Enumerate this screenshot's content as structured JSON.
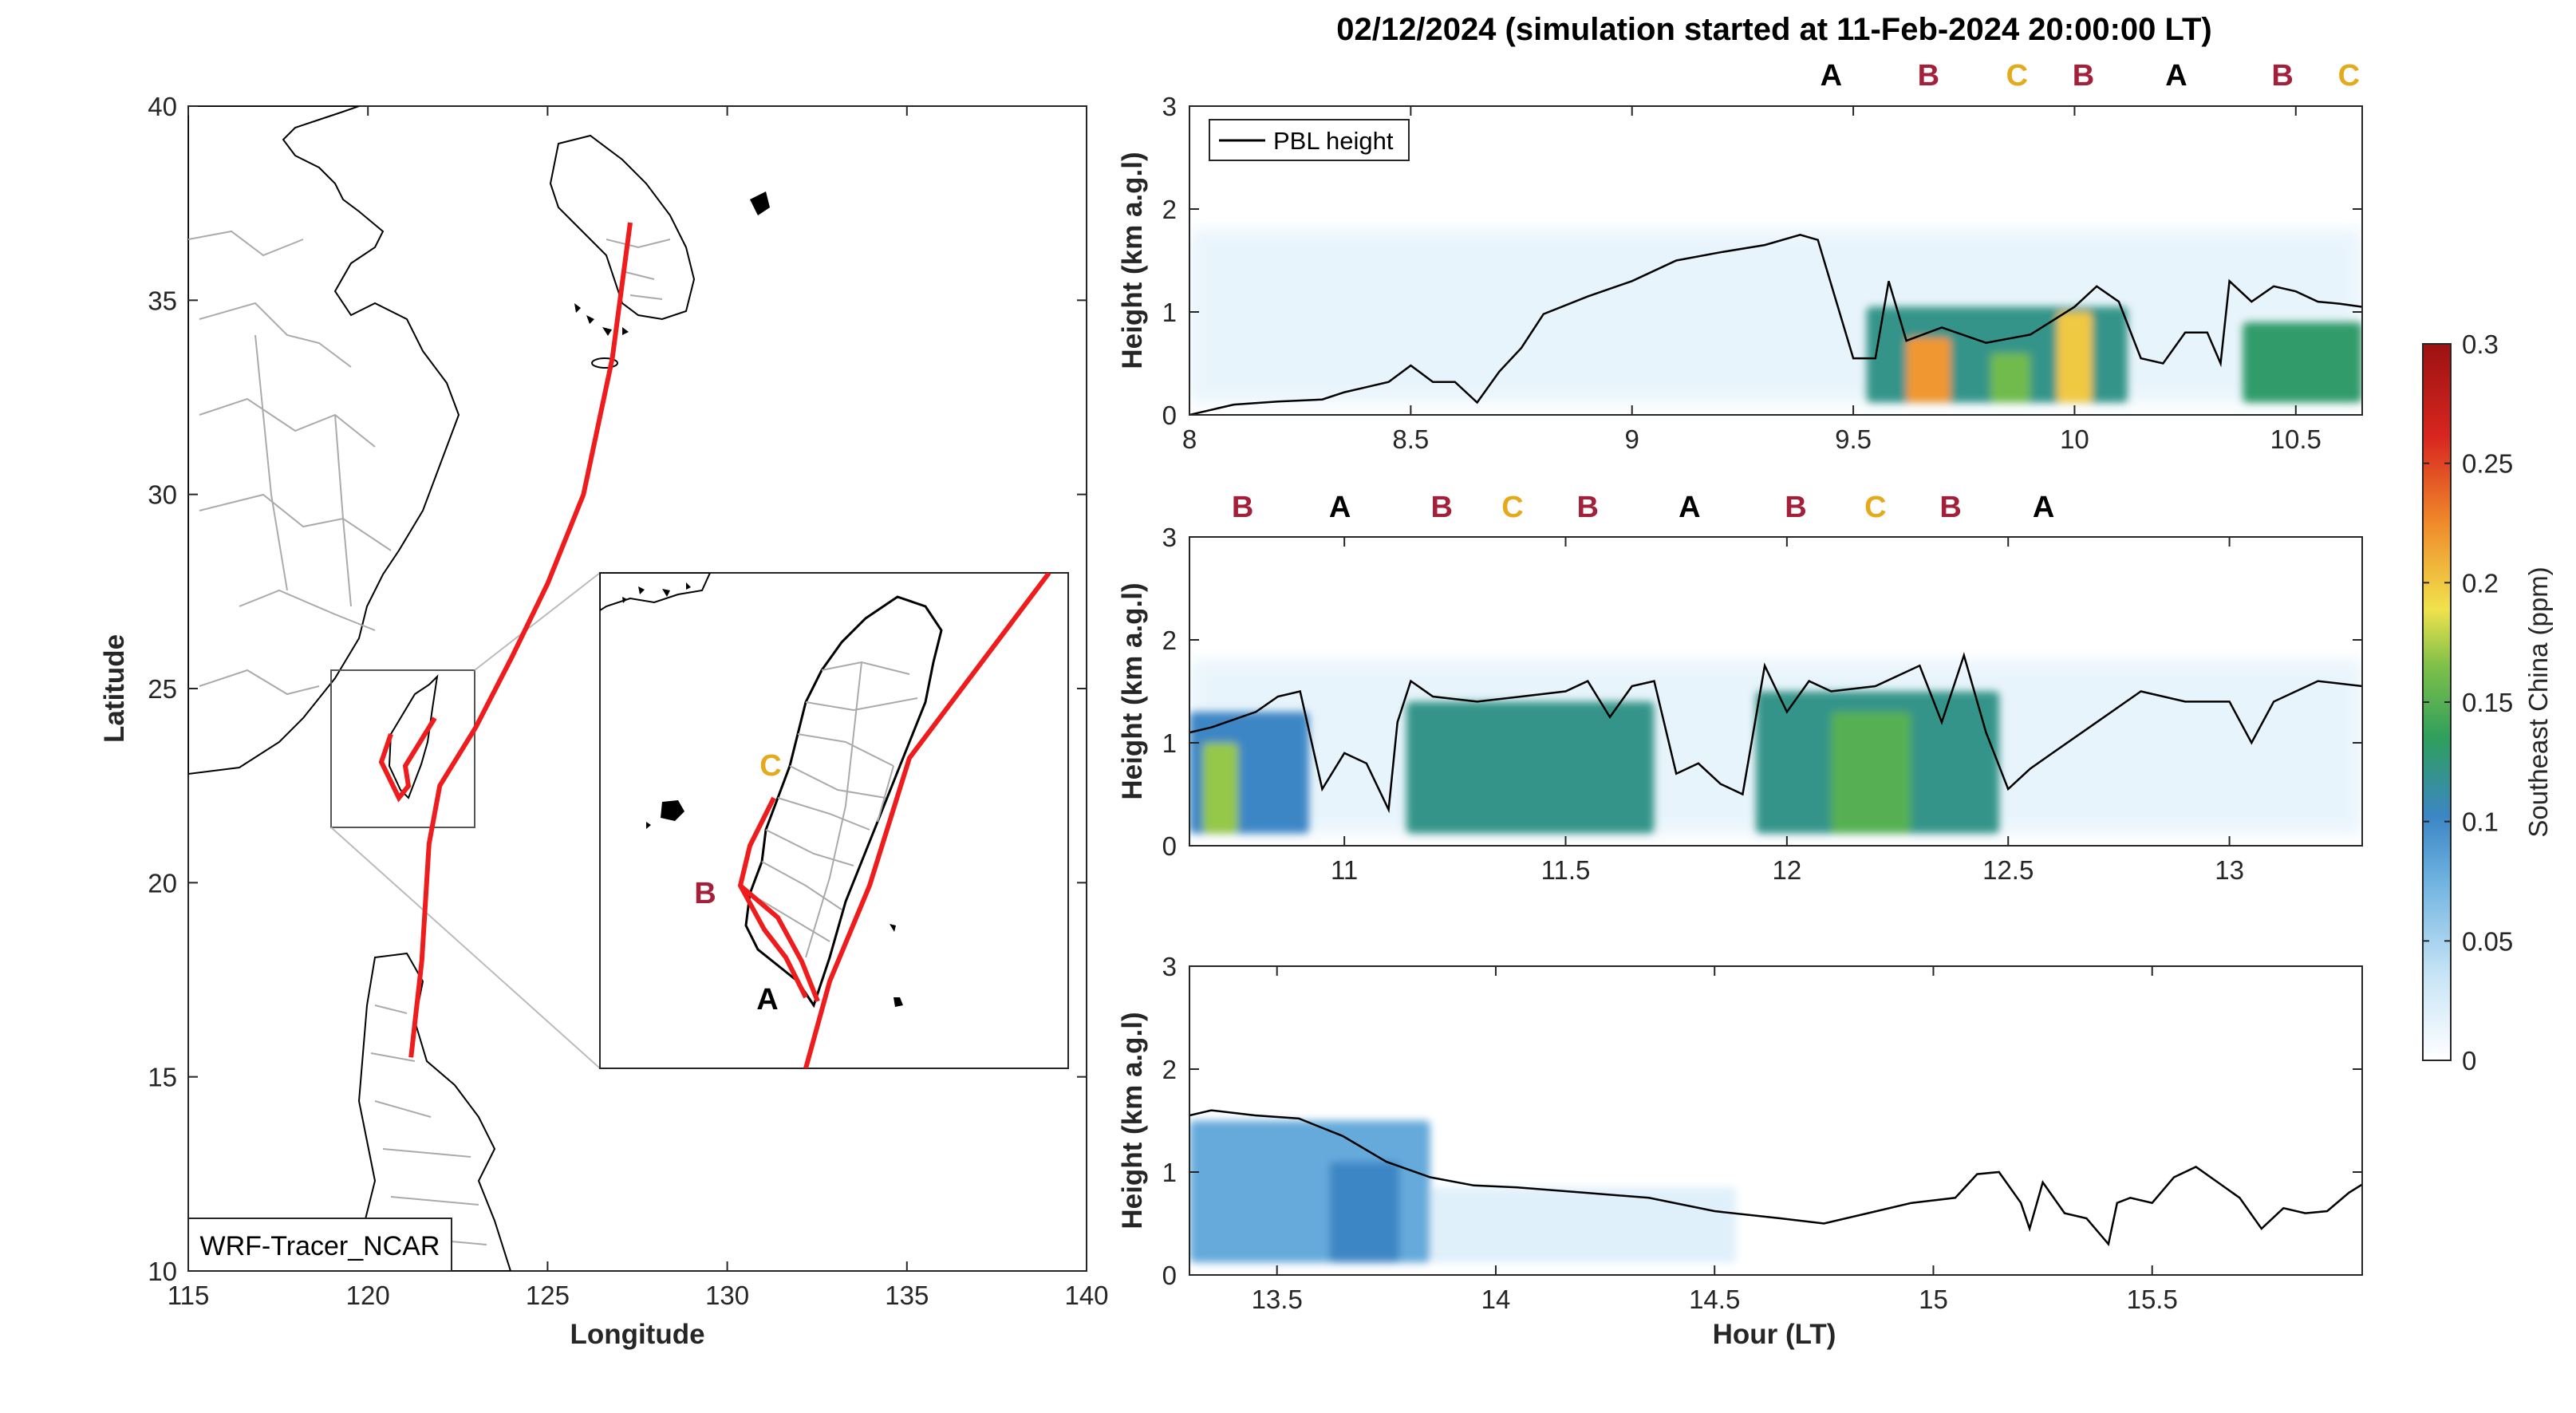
{
  "figure": {
    "title": "02/12/2024 (simulation started at 11-Feb-2024 20:00:00 LT)"
  },
  "colors": {
    "line": "#000000",
    "track": "#ee1c1c",
    "marker_A": "#000000",
    "marker_B": "#a3203a",
    "marker_C": "#e5a91c",
    "coast": "#000000",
    "borders": "#aaaaaa"
  },
  "chart_data": [
    {
      "type": "map",
      "name": "trajectory-map",
      "xlabel": "Longitude",
      "ylabel": "Latitude",
      "xlim": [
        115,
        140
      ],
      "ylim": [
        10,
        40
      ],
      "xticks": [
        115,
        120,
        125,
        130,
        135,
        140
      ],
      "yticks": [
        10,
        15,
        20,
        25,
        30,
        35,
        40
      ],
      "annotation_box": "WRF-Tracer_NCAR",
      "track": {
        "lon": [
          121.2,
          121.5,
          121.7,
          122.0,
          123.0,
          124.0,
          125.0,
          126.0,
          126.8,
          127.3
        ],
        "lat": [
          15.5,
          18.0,
          21.0,
          22.5,
          24.0,
          25.8,
          27.7,
          30.0,
          33.5,
          37.0
        ]
      },
      "inset": {
        "lon_range": [
          119.0,
          122.3
        ],
        "lat_range": [
          21.5,
          25.5
        ],
        "markers": [
          {
            "label": "C",
            "lon": 121.45,
            "lat": 24.3,
            "color": "#e5a91c"
          },
          {
            "label": "B",
            "lon": 120.25,
            "lat": 23.1,
            "color": "#a3203a"
          },
          {
            "label": "A",
            "lon": 120.95,
            "lat": 21.9,
            "color": "#000000"
          }
        ],
        "tracks": [
          {
            "lon": [
              121.45,
              120.65,
              120.9,
              121.05,
              121.4,
              122.2
            ],
            "lat": [
              24.3,
              23.2,
              22.5,
              22.0,
              21.6,
              25.5
            ]
          },
          {
            "lon": [
              120.65,
              121.35,
              121.55
            ],
            "lat": [
              23.2,
              22.1,
              21.5
            ]
          }
        ]
      }
    },
    {
      "type": "heatmap",
      "name": "panel-1",
      "xlim": [
        8,
        10.65
      ],
      "ylim": [
        0,
        3
      ],
      "xticks": [
        8,
        8.5,
        9,
        9.5,
        10,
        10.5
      ],
      "yticks": [
        0,
        1,
        2,
        3
      ],
      "ylabel": "Height (km a.g.l)",
      "legend": "PBL height",
      "site_labels": [
        {
          "label": "A",
          "x": 9.45
        },
        {
          "label": "B",
          "x": 9.67
        },
        {
          "label": "C",
          "x": 9.87
        },
        {
          "label": "B",
          "x": 10.02
        },
        {
          "label": "A",
          "x": 10.23
        },
        {
          "label": "B",
          "x": 10.47
        },
        {
          "label": "C",
          "x": 10.62
        }
      ],
      "pbl": {
        "x": [
          8.0,
          8.1,
          8.2,
          8.3,
          8.35,
          8.4,
          8.45,
          8.5,
          8.55,
          8.6,
          8.65,
          8.7,
          8.75,
          8.8,
          8.9,
          9.0,
          9.1,
          9.2,
          9.3,
          9.38,
          9.42,
          9.5,
          9.55,
          9.58,
          9.62,
          9.7,
          9.8,
          9.9,
          10.0,
          10.05,
          10.1,
          10.15,
          10.2,
          10.25,
          10.3,
          10.33,
          10.35,
          10.4,
          10.45,
          10.5,
          10.55,
          10.6,
          10.65
        ],
        "y": [
          0.0,
          0.1,
          0.13,
          0.15,
          0.22,
          0.27,
          0.32,
          0.48,
          0.32,
          0.32,
          0.12,
          0.42,
          0.65,
          0.98,
          1.15,
          1.3,
          1.5,
          1.58,
          1.65,
          1.75,
          1.7,
          0.55,
          0.55,
          1.3,
          0.72,
          0.85,
          0.7,
          0.78,
          1.05,
          1.25,
          1.1,
          0.55,
          0.5,
          0.8,
          0.8,
          0.5,
          1.3,
          1.1,
          1.25,
          1.2,
          1.1,
          1.08,
          1.05
        ]
      },
      "tracer": [
        {
          "x0": 9.53,
          "x1": 10.12,
          "y1": 1.05,
          "value": 0.12
        },
        {
          "x0": 9.62,
          "x1": 9.72,
          "y1": 0.75,
          "value": 0.22
        },
        {
          "x0": 9.81,
          "x1": 9.9,
          "y1": 0.6,
          "value": 0.16
        },
        {
          "x0": 9.96,
          "x1": 10.04,
          "y1": 1.0,
          "value": 0.2
        },
        {
          "x0": 10.38,
          "x1": 10.65,
          "y1": 0.9,
          "value": 0.13
        }
      ]
    },
    {
      "type": "heatmap",
      "name": "panel-2",
      "xlim": [
        10.65,
        13.3
      ],
      "ylim": [
        0,
        3
      ],
      "xticks": [
        11,
        11.5,
        12,
        12.5,
        13
      ],
      "yticks": [
        0,
        1,
        2,
        3
      ],
      "ylabel": "Height (km a.g.l)",
      "site_labels": [
        {
          "label": "B",
          "x": 10.77
        },
        {
          "label": "A",
          "x": 10.99
        },
        {
          "label": "B",
          "x": 11.22
        },
        {
          "label": "C",
          "x": 11.38
        },
        {
          "label": "B",
          "x": 11.55
        },
        {
          "label": "A",
          "x": 11.78
        },
        {
          "label": "B",
          "x": 12.02
        },
        {
          "label": "C",
          "x": 12.2
        },
        {
          "label": "B",
          "x": 12.37
        },
        {
          "label": "A",
          "x": 12.58
        }
      ],
      "pbl": {
        "x": [
          10.65,
          10.7,
          10.8,
          10.85,
          10.9,
          10.95,
          11.0,
          11.05,
          11.1,
          11.12,
          11.15,
          11.2,
          11.3,
          11.4,
          11.5,
          11.55,
          11.6,
          11.65,
          11.7,
          11.75,
          11.8,
          11.85,
          11.9,
          11.95,
          12.0,
          12.05,
          12.1,
          12.2,
          12.3,
          12.35,
          12.4,
          12.45,
          12.5,
          12.55,
          12.6,
          12.7,
          12.8,
          12.9,
          13.0,
          13.05,
          13.1,
          13.2,
          13.3
        ],
        "y": [
          1.1,
          1.15,
          1.3,
          1.45,
          1.5,
          0.55,
          0.9,
          0.8,
          0.35,
          1.2,
          1.6,
          1.45,
          1.4,
          1.45,
          1.5,
          1.6,
          1.25,
          1.55,
          1.6,
          0.7,
          0.8,
          0.6,
          0.5,
          1.75,
          1.3,
          1.6,
          1.5,
          1.55,
          1.75,
          1.2,
          1.85,
          1.1,
          0.55,
          0.75,
          0.9,
          1.2,
          1.5,
          1.4,
          1.4,
          1.0,
          1.4,
          1.6,
          1.55
        ]
      },
      "tracer": [
        {
          "x0": 10.65,
          "x1": 10.92,
          "y1": 1.3,
          "value": 0.1
        },
        {
          "x0": 10.68,
          "x1": 10.76,
          "y1": 1.0,
          "value": 0.17
        },
        {
          "x0": 11.14,
          "x1": 11.7,
          "y1": 1.4,
          "value": 0.12
        },
        {
          "x0": 11.93,
          "x1": 12.48,
          "y1": 1.5,
          "value": 0.12
        },
        {
          "x0": 12.1,
          "x1": 12.28,
          "y1": 1.3,
          "value": 0.15
        }
      ]
    },
    {
      "type": "heatmap",
      "name": "panel-3",
      "xlim": [
        13.3,
        15.98
      ],
      "ylim": [
        0,
        3
      ],
      "xticks": [
        13.5,
        14,
        14.5,
        15,
        15.5
      ],
      "yticks": [
        0,
        1,
        2,
        3
      ],
      "xlabel": "Hour (LT)",
      "ylabel": "Height (km a.g.l)",
      "pbl": {
        "x": [
          13.3,
          13.35,
          13.45,
          13.55,
          13.65,
          13.75,
          13.85,
          13.95,
          14.05,
          14.2,
          14.35,
          14.5,
          14.65,
          14.75,
          14.85,
          14.95,
          15.05,
          15.1,
          15.15,
          15.2,
          15.22,
          15.25,
          15.3,
          15.35,
          15.4,
          15.42,
          15.45,
          15.5,
          15.55,
          15.6,
          15.65,
          15.7,
          15.75,
          15.8,
          15.85,
          15.9,
          15.95,
          15.98
        ],
        "y": [
          1.55,
          1.6,
          1.55,
          1.52,
          1.35,
          1.1,
          0.95,
          0.87,
          0.85,
          0.8,
          0.75,
          0.62,
          0.55,
          0.5,
          0.6,
          0.7,
          0.75,
          0.98,
          1.0,
          0.7,
          0.45,
          0.9,
          0.6,
          0.55,
          0.3,
          0.7,
          0.75,
          0.7,
          0.95,
          1.05,
          0.9,
          0.75,
          0.45,
          0.65,
          0.6,
          0.62,
          0.8,
          0.88
        ]
      },
      "tracer": [
        {
          "x0": 13.3,
          "x1": 13.85,
          "y1": 1.5,
          "value": 0.08
        },
        {
          "x0": 13.62,
          "x1": 13.78,
          "y1": 1.1,
          "value": 0.1
        },
        {
          "x0": 13.85,
          "x1": 14.55,
          "y1": 0.85,
          "value": 0.02
        }
      ]
    }
  ],
  "colorbar": {
    "label": "Southeast China (ppm)",
    "ticks": [
      0,
      0.05,
      0.1,
      0.15,
      0.2,
      0.25,
      0.3
    ],
    "range": [
      0,
      0.3
    ]
  }
}
